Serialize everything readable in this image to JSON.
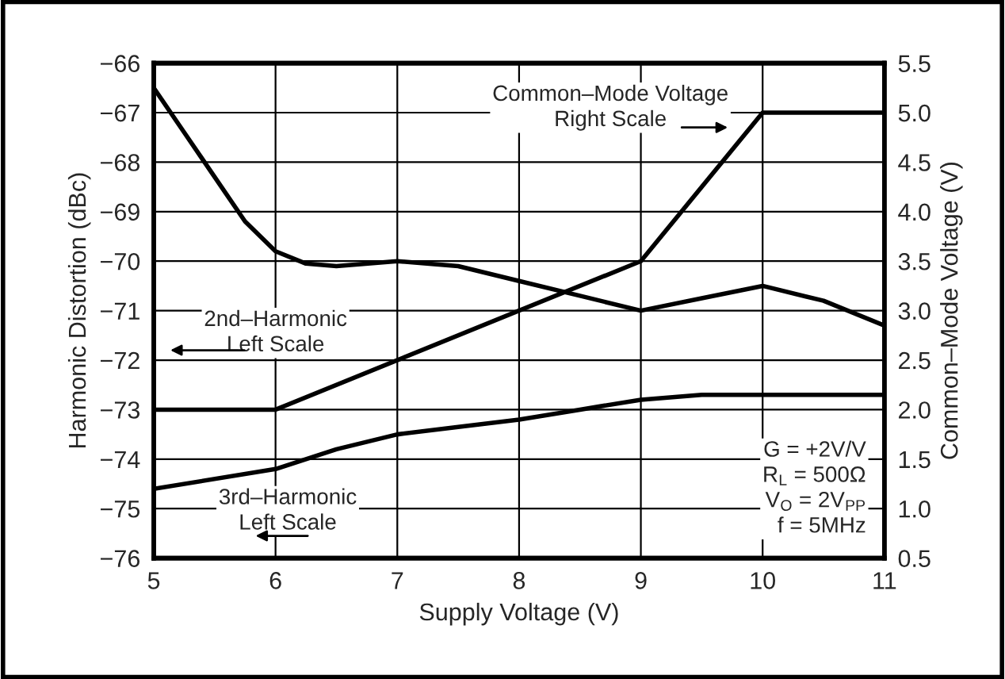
{
  "chart_data": {
    "type": "line",
    "xlabel": "Supply Voltage (V)",
    "ylabel": "Harmonic Distortion (dBc)",
    "y2label": "Common–Mode Voltage (V)",
    "series": [
      {
        "x": [
          5,
          5.25,
          5.5,
          5.75,
          6,
          6.25,
          6.5,
          7,
          7.5,
          8,
          8.5,
          9,
          9.5,
          10,
          10.5,
          11
        ],
        "values": [
          -66.5,
          -67.4,
          -68.3,
          -69.2,
          -69.8,
          -70.05,
          -70.1,
          -70.0,
          -70.1,
          -70.4,
          -70.7,
          -71.0,
          -70.75,
          -70.5,
          -70.8,
          -71.3
        ],
        "color": "#000000"
      },
      {
        "x": [
          5,
          6,
          6.5,
          7,
          7.5,
          8,
          8.5,
          9,
          9.5,
          10,
          11
        ],
        "values": [
          -74.6,
          -74.2,
          -73.8,
          -73.5,
          -73.35,
          -73.2,
          -73.0,
          -72.8,
          -72.7,
          -72.7,
          -72.7
        ],
        "color": "#000000"
      },
      {
        "x": [
          5,
          6,
          9,
          10,
          11
        ],
        "values": [
          2.0,
          2.0,
          3.5,
          5.0,
          5.0
        ],
        "color": "#000000",
        "axis": "y2"
      }
    ],
    "xlim": [
      5,
      11
    ],
    "xticks": [
      5,
      6,
      7,
      8,
      9,
      10,
      11
    ],
    "ylim": [
      -76,
      -66
    ],
    "yticks": [
      {
        "value": -76,
        "label": "−76"
      },
      {
        "value": -75,
        "label": "−75"
      },
      {
        "value": -74,
        "label": "−74"
      },
      {
        "value": -73,
        "label": "−73"
      },
      {
        "value": -72,
        "label": "−72"
      },
      {
        "value": -71,
        "label": "−71"
      },
      {
        "value": -70,
        "label": "−70"
      },
      {
        "value": -69,
        "label": "−69"
      },
      {
        "value": -68,
        "label": "−68"
      },
      {
        "value": -67,
        "label": "−67"
      },
      {
        "value": -66,
        "label": "−66"
      }
    ],
    "y2lim": [
      0.5,
      5.5
    ],
    "y2ticks": [
      0.5,
      {
        "value": 1,
        "label": "1.0"
      },
      1.5,
      {
        "value": 2,
        "label": "2.0"
      },
      2.5,
      {
        "value": 3,
        "label": "3.0"
      },
      3.5,
      {
        "value": 4,
        "label": "4.0"
      },
      4.5,
      {
        "value": 5,
        "label": "5.0"
      },
      5.5
    ],
    "grid": true,
    "marker": "none",
    "line_style": "solid",
    "annotations": [
      "Common–Mode Voltage\nRight Scale",
      "2nd–Harmonic\nLeft Scale",
      "3rd–Harmonic\nLeft Scale",
      "G = +2V/V\nR$_{L}$ = 500Ω\nV$_{O}$ = 2V$_{PP}$\nf = 5MHz"
    ]
  }
}
